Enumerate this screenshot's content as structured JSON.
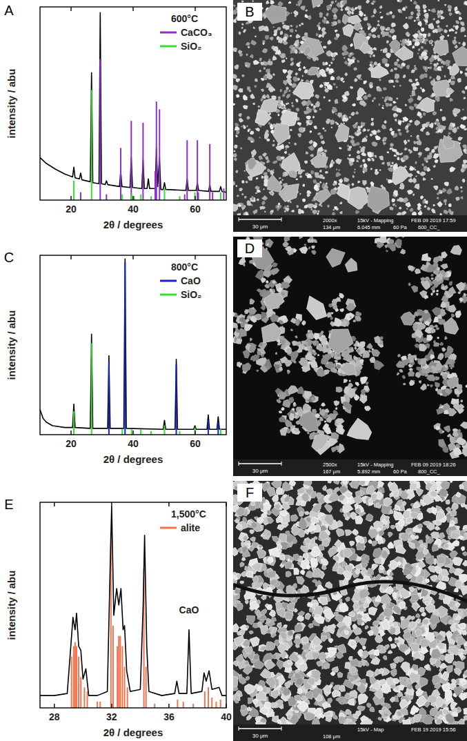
{
  "chart_data": [
    {
      "type": "line",
      "panel_label": "A",
      "title": "600°C",
      "x_label": "2θ / degrees",
      "y_label": "intensity / abu",
      "xlim": [
        10,
        70
      ],
      "xticks": [
        20,
        40,
        60
      ],
      "ylim": [
        0,
        100
      ],
      "tick_labels": "x",
      "grid": false,
      "legend": "upper right",
      "series": [
        {
          "color": "#000000",
          "line_style": "solid",
          "x": [
            10,
            12,
            15,
            18,
            20.5,
            20.9,
            21.3,
            22.7,
            23.1,
            23.5,
            26.2,
            26.6,
            27.0,
            29.0,
            29.4,
            29.8,
            31.0,
            31.4,
            31.8,
            35.6,
            36.0,
            36.4,
            39.0,
            39.4,
            39.8,
            42.8,
            43.2,
            43.6,
            44.5,
            44.9,
            45.3,
            47.1,
            47.5,
            47.9,
            48.5,
            48.9,
            49.7,
            50.1,
            50.5,
            57.0,
            57.4,
            57.8,
            60.3,
            60.7,
            61.1,
            64.3,
            64.7,
            65.1,
            67.8,
            68.2,
            68.6,
            70
          ],
          "values": [
            22,
            19,
            16,
            13.5,
            12,
            17,
            11.5,
            11,
            14,
            10.5,
            9.5,
            66,
            9,
            8.5,
            97,
            8.5,
            8,
            10,
            8,
            7,
            15,
            7,
            6.5,
            22,
            6.5,
            6,
            21,
            6,
            6,
            11,
            6,
            6,
            27,
            7,
            22,
            5.5,
            5.5,
            9,
            5.5,
            5,
            11,
            5,
            5,
            9,
            5,
            4.5,
            8,
            4.5,
            4.5,
            7,
            4.5,
            4
          ]
        },
        {
          "name": "CaCO₃",
          "color": "#8e2fc6",
          "type": "stem",
          "x": [
            23.1,
            29.4,
            31.4,
            36.0,
            39.4,
            43.2,
            47.1,
            47.5,
            48.5,
            56.6,
            57.4,
            60.7,
            61.0,
            64.7,
            65.6,
            69.2
          ],
          "values": [
            4,
            73,
            3,
            27,
            41,
            40,
            15,
            51,
            47,
            3,
            31,
            31,
            4,
            29,
            4,
            6
          ]
        },
        {
          "name": "SiO₂",
          "color": "#2fe02f",
          "type": "stem",
          "x": [
            20.9,
            26.6,
            36.5,
            39.5,
            40.3,
            42.5,
            45.8,
            50.1,
            55.0,
            59.9,
            68.2
          ],
          "values": [
            10,
            57,
            3,
            3,
            2,
            3,
            2,
            6,
            2,
            4,
            4
          ]
        }
      ]
    },
    {
      "type": "line",
      "panel_label": "C",
      "title": "800°C",
      "x_label": "2θ / degrees",
      "y_label": "intensity / abu",
      "xlim": [
        10,
        70
      ],
      "xticks": [
        20,
        40,
        60
      ],
      "ylim": [
        0,
        100
      ],
      "tick_labels": "x",
      "grid": false,
      "legend": "upper right",
      "series": [
        {
          "color": "#000000",
          "line_style": "solid",
          "x": [
            10,
            11,
            12,
            14,
            18,
            20.5,
            20.9,
            21.3,
            26.2,
            26.6,
            27.0,
            31.8,
            32.2,
            32.6,
            37.0,
            37.4,
            37.8,
            49.7,
            50.1,
            50.5,
            53.5,
            53.9,
            54.3,
            59.5,
            59.9,
            60.3,
            63.8,
            64.2,
            64.6,
            67.0,
            67.4,
            67.8,
            70
          ],
          "values": [
            14,
            9,
            7,
            5,
            4,
            4,
            17,
            4,
            3.5,
            56,
            3.5,
            3.5,
            44,
            3.5,
            3.5,
            98,
            3.5,
            3,
            8,
            3,
            3,
            42,
            3,
            3,
            5,
            3,
            3,
            11,
            3,
            3,
            10,
            3,
            3
          ]
        },
        {
          "name": "CaO",
          "color": "#1424d2",
          "type": "stem",
          "x": [
            32.2,
            37.4,
            53.9,
            64.2,
            67.4
          ],
          "values": [
            41,
            96,
            39,
            8,
            7
          ]
        },
        {
          "name": "SiO₂",
          "color": "#2fe02f",
          "type": "stem",
          "x": [
            20.9,
            26.6,
            36.5,
            39.5,
            42.5,
            45.8,
            50.1,
            55.0,
            59.9,
            68.2
          ],
          "values": [
            13,
            51,
            3,
            3,
            3,
            2,
            5,
            2,
            4,
            3
          ]
        }
      ]
    },
    {
      "type": "line",
      "panel_label": "E",
      "title": "1,500°C",
      "x_label": "2θ / degrees",
      "y_label": "intensity / abu",
      "xlim": [
        27,
        40
      ],
      "xticks": [
        28,
        32,
        36,
        40
      ],
      "ylim": [
        0,
        100
      ],
      "tick_labels": "x",
      "grid": false,
      "legend": "upper right",
      "annotations": [
        {
          "text": "CaO",
          "x": 37.4,
          "y": 44
        }
      ],
      "series": [
        {
          "name": "alite",
          "color": "#f4744f",
          "type": "stem",
          "x": [
            29.2,
            29.35,
            29.45,
            29.55,
            29.7,
            29.85,
            30.1,
            30.3,
            31.0,
            31.2,
            31.95,
            32.1,
            32.4,
            32.5,
            32.6,
            32.75,
            32.9,
            33.1,
            34.25,
            34.4,
            35.0,
            36.6,
            37.0,
            37.7,
            38.5,
            38.75,
            39.0,
            39.3,
            39.6
          ],
          "values": [
            25,
            30,
            32,
            30,
            25,
            15,
            10,
            8,
            3,
            3,
            85,
            40,
            30,
            35,
            35,
            30,
            20,
            10,
            68,
            20,
            2,
            4,
            3,
            2,
            8,
            10,
            5,
            3,
            4
          ]
        },
        {
          "color": "#000000",
          "line_style": "solid",
          "x": [
            27,
            28,
            28.9,
            29.15,
            29.3,
            29.45,
            29.55,
            29.7,
            29.85,
            30.0,
            30.2,
            30.4,
            31.0,
            31.7,
            31.9,
            32.0,
            32.15,
            32.35,
            32.5,
            32.65,
            32.8,
            32.9,
            33.05,
            33.3,
            34.0,
            34.2,
            34.3,
            34.45,
            34.6,
            35.5,
            36.4,
            36.55,
            36.7,
            37.25,
            37.4,
            37.55,
            38.3,
            38.45,
            38.6,
            38.8,
            39.0,
            39.5,
            39.7,
            40
          ],
          "values": [
            6,
            6,
            7,
            30,
            44,
            38,
            46,
            30,
            28,
            14,
            19,
            6,
            6,
            8,
            70,
            98,
            45,
            58,
            50,
            58,
            38,
            40,
            18,
            8,
            9,
            50,
            84,
            30,
            8,
            6,
            7,
            13,
            7,
            7,
            38,
            7,
            8,
            17,
            13,
            18,
            9,
            10,
            6,
            6
          ]
        }
      ]
    }
  ],
  "images": [
    {
      "panel_label": "B",
      "scale_bar": "30 μm",
      "info_top": [
        "2000x",
        "15kV - Mapping",
        "FEB 09 2019 17:59"
      ],
      "info_bottom": [
        "134 μm",
        "6.045 mm",
        "60 Pa",
        "600_CC_"
      ]
    },
    {
      "panel_label": "D",
      "scale_bar": "30 μm",
      "info_top": [
        "2500x",
        "15kV - Mapping",
        "FEB 09 2019 18:26"
      ],
      "info_bottom": [
        "167 μm",
        "5.892 mm",
        "60 Pa",
        "800_CC_"
      ]
    },
    {
      "panel_label": "F",
      "scale_bar": "30 μm",
      "info_top": [
        "15kV - Map",
        "FEB 19 2019 15:56"
      ],
      "info_bottom": [
        "108 μm"
      ]
    }
  ]
}
